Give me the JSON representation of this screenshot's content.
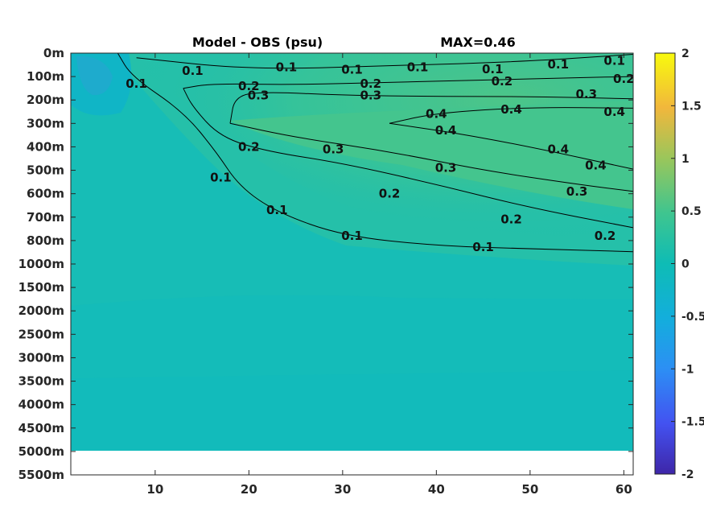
{
  "chart_data": {
    "type": "heatmap",
    "title": "Model - OBS (psu)",
    "subtitle": "MAX=0.46",
    "xlabel": "",
    "ylabel": "",
    "x_ticks": [
      10,
      20,
      30,
      40,
      50,
      60
    ],
    "x_range": [
      1,
      61
    ],
    "y_tick_labels": [
      "0m",
      "100m",
      "200m",
      "300m",
      "400m",
      "500m",
      "600m",
      "700m",
      "800m",
      "1000m",
      "1500m",
      "2000m",
      "2500m",
      "3000m",
      "3500m",
      "4000m",
      "4500m",
      "5000m",
      "5500m"
    ],
    "data_bottom_label": "5000m",
    "colorbar": {
      "min": -2,
      "max": 2,
      "ticks": [
        -2,
        -1.5,
        -1,
        -0.5,
        0,
        0.5,
        1,
        1.5,
        2
      ],
      "tick_labels": [
        "-2",
        "-1.5",
        "-1",
        "-0.5",
        "0",
        "0.5",
        "1",
        "1.5",
        "2"
      ],
      "colormap": "parula"
    },
    "contour_levels": [
      0.1,
      0.2,
      0.3,
      0.4
    ],
    "contours": [
      {
        "level": 0.1,
        "label": "0.1",
        "points": [
          [
            6,
            0
          ],
          [
            7.5,
            100
          ],
          [
            13,
            250
          ],
          [
            16.5,
            420
          ],
          [
            19,
            570
          ],
          [
            23,
            680
          ],
          [
            30,
            780
          ],
          [
            40,
            845
          ],
          [
            50,
            870
          ],
          [
            61,
            895
          ]
        ],
        "labels": [
          [
            8,
            130
          ],
          [
            17,
            530
          ],
          [
            23,
            670
          ],
          [
            31,
            780
          ],
          [
            45,
            855
          ]
        ]
      },
      {
        "level": 0.1,
        "label": "0.1",
        "points": [
          [
            8,
            20
          ],
          [
            20,
            70
          ],
          [
            35,
            55
          ],
          [
            50,
            35
          ],
          [
            61,
            5
          ]
        ],
        "labels": [
          [
            14,
            75
          ],
          [
            24,
            60
          ],
          [
            31,
            70
          ],
          [
            38,
            60
          ],
          [
            46,
            68
          ],
          [
            53,
            48
          ],
          [
            59,
            32
          ]
        ]
      },
      {
        "level": 0.2,
        "label": "0.2",
        "points": [
          [
            13,
            150
          ],
          [
            16,
            130
          ],
          [
            25,
            135
          ],
          [
            35,
            125
          ],
          [
            45,
            115
          ],
          [
            55,
            105
          ],
          [
            61,
            100
          ]
        ],
        "labels": [
          [
            20,
            140
          ],
          [
            33,
            130
          ],
          [
            47,
            120
          ],
          [
            60,
            110
          ]
        ]
      },
      {
        "level": 0.2,
        "label": "0.2",
        "points": [
          [
            13,
            150
          ],
          [
            14,
            230
          ],
          [
            17,
            360
          ],
          [
            22,
            420
          ],
          [
            30,
            470
          ],
          [
            40,
            560
          ],
          [
            50,
            660
          ],
          [
            61,
            745
          ]
        ],
        "labels": [
          [
            20,
            400
          ],
          [
            35,
            600
          ],
          [
            48,
            710
          ],
          [
            58,
            780
          ]
        ]
      },
      {
        "level": 0.3,
        "label": "0.3",
        "points": [
          [
            18,
            300
          ],
          [
            18.5,
            180
          ],
          [
            22,
            165
          ],
          [
            30,
            180
          ],
          [
            40,
            185
          ],
          [
            50,
            185
          ],
          [
            61,
            195
          ]
        ],
        "labels": [
          [
            21,
            180
          ],
          [
            33,
            180
          ],
          [
            56,
            175
          ]
        ]
      },
      {
        "level": 0.3,
        "label": "0.3",
        "points": [
          [
            18,
            300
          ],
          [
            25,
            360
          ],
          [
            35,
            420
          ],
          [
            45,
            500
          ],
          [
            55,
            560
          ],
          [
            61,
            590
          ]
        ],
        "labels": [
          [
            29,
            410
          ],
          [
            41,
            490
          ],
          [
            55,
            590
          ]
        ]
      },
      {
        "level": 0.4,
        "label": "0.4",
        "points": [
          [
            35,
            300
          ],
          [
            40,
            255
          ],
          [
            50,
            230
          ],
          [
            61,
            235
          ]
        ],
        "labels": [
          [
            40,
            260
          ],
          [
            48,
            240
          ],
          [
            59,
            250
          ]
        ]
      },
      {
        "level": 0.4,
        "label": "0.4",
        "points": [
          [
            35,
            300
          ],
          [
            42,
            340
          ],
          [
            50,
            400
          ],
          [
            61,
            495
          ]
        ],
        "labels": [
          [
            41,
            330
          ],
          [
            53,
            410
          ],
          [
            57,
            480
          ]
        ]
      }
    ]
  }
}
